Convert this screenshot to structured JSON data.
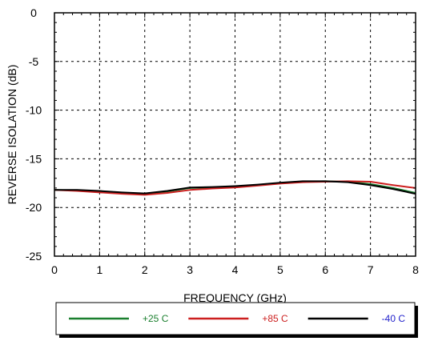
{
  "chart_data": {
    "type": "line",
    "title": "",
    "xlabel": "FREQUENCY (GHz)",
    "ylabel": "REVERSE ISOLATION (dB)",
    "xlim": [
      0,
      8
    ],
    "ylim": [
      -25,
      0
    ],
    "xticks": [
      "0",
      "1",
      "2",
      "3",
      "4",
      "5",
      "6",
      "7",
      "8"
    ],
    "yticks": [
      "0",
      "-5",
      "-10",
      "-15",
      "-20",
      "-25"
    ],
    "grid": true,
    "legend_position": "bottom",
    "x": [
      0,
      0.5,
      1,
      1.5,
      2,
      2.5,
      3,
      3.5,
      4,
      4.5,
      5,
      5.5,
      6,
      6.5,
      7,
      7.5,
      8
    ],
    "series": [
      {
        "name": "+25 C",
        "color": "#1a7f2e",
        "values": [
          -18.2,
          -18.25,
          -18.35,
          -18.5,
          -18.6,
          -18.35,
          -18.0,
          -17.95,
          -17.85,
          -17.7,
          -17.5,
          -17.35,
          -17.3,
          -17.35,
          -17.6,
          -18.0,
          -18.5
        ]
      },
      {
        "name": "+85 C",
        "color": "#cc1f1f",
        "values": [
          -18.2,
          -18.3,
          -18.45,
          -18.6,
          -18.7,
          -18.5,
          -18.2,
          -18.05,
          -17.95,
          -17.75,
          -17.55,
          -17.4,
          -17.35,
          -17.3,
          -17.35,
          -17.7,
          -18.0
        ]
      },
      {
        "name": "-40 C",
        "color": "#000000",
        "values": [
          -18.2,
          -18.2,
          -18.3,
          -18.45,
          -18.55,
          -18.3,
          -17.95,
          -17.9,
          -17.8,
          -17.65,
          -17.45,
          -17.3,
          -17.3,
          -17.4,
          -17.7,
          -18.1,
          -18.6
        ]
      }
    ],
    "legend_text_colors": [
      "#1a7f2e",
      "#cc1f1f",
      "#2222cc"
    ]
  }
}
